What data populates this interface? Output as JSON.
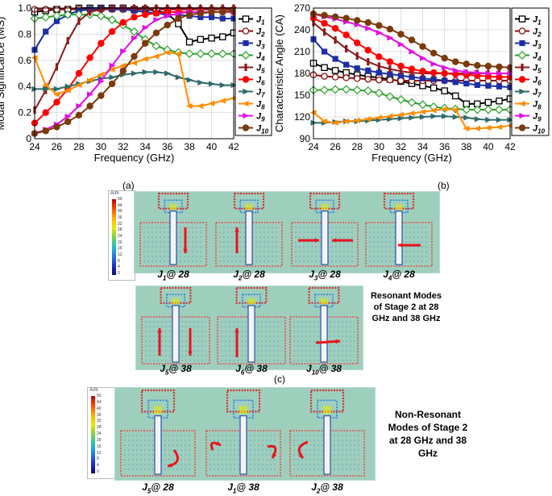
{
  "chart_data": [
    {
      "type": "line",
      "title": "",
      "xlabel": "Frequency (GHz)",
      "ylabel": "Modal Significance (MS)",
      "xlim": [
        24,
        42
      ],
      "ylim": [
        0,
        1
      ],
      "xticks": [
        "24",
        "26",
        "28",
        "30",
        "32",
        "34",
        "36",
        "38",
        "40",
        "42"
      ],
      "yticks": [
        "0",
        "0.2",
        "0.4",
        "0.6",
        "0.8",
        "1.0"
      ],
      "grid": true,
      "legend_position": "right",
      "x": [
        24,
        25,
        26,
        27,
        28,
        29,
        30,
        31,
        32,
        33,
        34,
        35,
        36,
        37,
        38,
        39,
        40,
        41,
        42
      ],
      "series": [
        {
          "name": "J1",
          "label": "J",
          "sub": "1",
          "color": "#000000",
          "marker": "square-open",
          "values": [
            0.97,
            0.98,
            0.99,
            0.99,
            1.0,
            1.0,
            1.0,
            1.0,
            1.0,
            0.99,
            0.99,
            0.98,
            0.96,
            0.88,
            0.74,
            0.76,
            0.77,
            0.78,
            0.81
          ]
        },
        {
          "name": "J2",
          "label": "J",
          "sub": "2",
          "color": "#8b1010",
          "marker": "circle-open",
          "values": [
            0.99,
            0.99,
            0.99,
            0.99,
            0.99,
            0.99,
            0.99,
            0.99,
            0.99,
            0.99,
            0.99,
            0.99,
            0.99,
            0.99,
            0.99,
            0.99,
            0.99,
            0.99,
            0.99
          ]
        },
        {
          "name": "J3",
          "label": "J",
          "sub": "3",
          "color": "#1a2fa6",
          "marker": "square",
          "values": [
            0.68,
            0.82,
            0.9,
            0.95,
            0.98,
            0.99,
            1.0,
            0.99,
            0.99,
            0.98,
            0.97,
            0.96,
            0.95,
            0.95,
            0.94,
            0.93,
            0.93,
            0.92,
            0.92
          ]
        },
        {
          "name": "J4",
          "label": "J",
          "sub": "4",
          "color": "#2aa02a",
          "marker": "diamond-open",
          "values": [
            0.92,
            0.93,
            0.94,
            0.95,
            0.95,
            0.95,
            0.94,
            0.91,
            0.87,
            0.82,
            0.76,
            0.71,
            0.68,
            0.66,
            0.65,
            0.65,
            0.65,
            0.65,
            0.65
          ]
        },
        {
          "name": "J5",
          "label": "J",
          "sub": "5",
          "color": "#8b1a1a",
          "marker": "bar",
          "values": [
            0.22,
            0.37,
            0.55,
            0.75,
            0.9,
            0.97,
            0.99,
            1.0,
            1.0,
            1.0,
            1.0,
            1.0,
            1.0,
            1.0,
            1.0,
            1.0,
            1.0,
            1.0,
            1.0
          ]
        },
        {
          "name": "J6",
          "label": "J",
          "sub": "6",
          "color": "#ff0000",
          "marker": "circle",
          "values": [
            0.12,
            0.2,
            0.28,
            0.38,
            0.5,
            0.62,
            0.73,
            0.82,
            0.89,
            0.93,
            0.95,
            0.96,
            0.97,
            0.97,
            0.97,
            0.97,
            0.97,
            0.97,
            0.97
          ]
        },
        {
          "name": "J7",
          "label": "J",
          "sub": "7",
          "color": "#2e6b6b",
          "marker": "triangle-right",
          "values": [
            0.38,
            0.38,
            0.38,
            0.4,
            0.42,
            0.44,
            0.46,
            0.47,
            0.49,
            0.5,
            0.51,
            0.51,
            0.5,
            0.47,
            0.45,
            0.43,
            0.42,
            0.41,
            0.41
          ]
        },
        {
          "name": "J8",
          "label": "J",
          "sub": "8",
          "color": "#ff8c00",
          "marker": "triangle-left",
          "values": [
            0.62,
            0.41,
            0.34,
            0.37,
            0.41,
            0.45,
            0.49,
            0.53,
            0.56,
            0.58,
            0.61,
            0.63,
            0.66,
            0.65,
            0.25,
            0.25,
            0.27,
            0.29,
            0.31
          ]
        },
        {
          "name": "J9",
          "label": "J",
          "sub": "9",
          "color": "#e010e0",
          "marker": "triangle-right",
          "values": [
            0.04,
            0.07,
            0.11,
            0.17,
            0.25,
            0.34,
            0.44,
            0.56,
            0.67,
            0.77,
            0.85,
            0.91,
            0.94,
            0.96,
            0.97,
            0.97,
            0.97,
            0.97,
            0.97
          ]
        },
        {
          "name": "J10",
          "label": "J",
          "sub": "10",
          "color": "#7a3a0a",
          "marker": "circle",
          "values": [
            0.04,
            0.06,
            0.09,
            0.13,
            0.18,
            0.25,
            0.33,
            0.42,
            0.52,
            0.63,
            0.73,
            0.81,
            0.87,
            0.92,
            0.95,
            0.96,
            0.97,
            0.97,
            0.98
          ]
        }
      ]
    },
    {
      "type": "line",
      "title": "",
      "xlabel": "Frequency (GHz)",
      "ylabel": "Characteristic Angle (CA)",
      "xlim": [
        24,
        42
      ],
      "ylim": [
        90,
        270
      ],
      "xticks": [
        "24",
        "26",
        "28",
        "30",
        "32",
        "34",
        "36",
        "38",
        "40",
        "42"
      ],
      "yticks": [
        "90",
        "120",
        "150",
        "180",
        "210",
        "240",
        "270"
      ],
      "grid": true,
      "legend_position": "right",
      "x": [
        24,
        25,
        26,
        27,
        28,
        29,
        30,
        31,
        32,
        33,
        34,
        35,
        36,
        37,
        38,
        39,
        40,
        41,
        42
      ],
      "series": [
        {
          "name": "J1",
          "label": "J",
          "sub": "1",
          "color": "#000000",
          "marker": "square-open",
          "values": [
            194,
            188,
            184,
            181,
            178,
            176,
            174,
            172,
            169,
            166,
            163,
            160,
            156,
            149,
            138,
            138,
            140,
            142,
            145
          ]
        },
        {
          "name": "J2",
          "label": "J",
          "sub": "2",
          "color": "#8b1010",
          "marker": "circle-open",
          "values": [
            178,
            176,
            175,
            174,
            173,
            172,
            171,
            171,
            170,
            170,
            170,
            170,
            170,
            170,
            170,
            170,
            170,
            170,
            170
          ]
        },
        {
          "name": "J3",
          "label": "J",
          "sub": "3",
          "color": "#1a2fa6",
          "marker": "square",
          "values": [
            227,
            210,
            200,
            192,
            187,
            184,
            181,
            179,
            177,
            175,
            173,
            172,
            170,
            168,
            166,
            164,
            163,
            162,
            161
          ]
        },
        {
          "name": "J4",
          "label": "J",
          "sub": "4",
          "color": "#2aa02a",
          "marker": "diamond-open",
          "values": [
            157,
            157,
            158,
            158,
            157,
            156,
            153,
            148,
            144,
            140,
            137,
            134,
            132,
            131,
            130,
            130,
            130,
            130,
            130
          ]
        },
        {
          "name": "J5",
          "label": "J",
          "sub": "5",
          "color": "#8b1a1a",
          "marker": "bar",
          "values": [
            250,
            237,
            226,
            214,
            204,
            196,
            190,
            186,
            183,
            181,
            180,
            180,
            180,
            180,
            180,
            180,
            180,
            180,
            180
          ]
        },
        {
          "name": "J6",
          "label": "J",
          "sub": "6",
          "color": "#ff0000",
          "marker": "circle",
          "values": [
            256,
            249,
            242,
            233,
            222,
            212,
            203,
            196,
            190,
            186,
            183,
            181,
            180,
            179,
            178,
            177,
            176,
            175,
            175
          ]
        },
        {
          "name": "J7",
          "label": "J",
          "sub": "7",
          "color": "#2e6b6b",
          "marker": "triangle-right",
          "values": [
            112,
            112,
            113,
            114,
            114,
            115,
            116,
            117,
            118,
            119,
            120,
            121,
            121,
            120,
            119,
            117,
            116,
            116,
            116
          ]
        },
        {
          "name": "J8",
          "label": "J",
          "sub": "8",
          "color": "#ff8c00",
          "marker": "triangle-left",
          "values": [
            126,
            114,
            112,
            114,
            115,
            117,
            119,
            121,
            123,
            125,
            127,
            129,
            131,
            130,
            104,
            104,
            105,
            106,
            108
          ]
        },
        {
          "name": "J9",
          "label": "J",
          "sub": "9",
          "color": "#e010e0",
          "marker": "triangle-right",
          "values": [
            262,
            258,
            255,
            251,
            247,
            242,
            236,
            229,
            220,
            210,
            201,
            193,
            188,
            184,
            182,
            181,
            180,
            180,
            180
          ]
        },
        {
          "name": "J10",
          "label": "J",
          "sub": "10",
          "color": "#7a3a0a",
          "marker": "circle",
          "values": [
            262,
            260,
            258,
            256,
            253,
            250,
            246,
            241,
            234,
            226,
            217,
            208,
            201,
            196,
            193,
            191,
            190,
            189,
            188
          ]
        }
      ]
    }
  ],
  "captions": {
    "a": "(a)",
    "b": "(b)",
    "c": "(c)"
  },
  "colorbar": {
    "unit": "A/m",
    "ticks": [
      "50",
      "44",
      "40",
      "36",
      "32",
      "28",
      "24",
      "20",
      "16",
      "12",
      "8",
      "4",
      "0"
    ]
  },
  "stage2_row1_labels": [
    {
      "j": "J",
      "sub": "1",
      "at": "@ 28"
    },
    {
      "j": "J",
      "sub": "2",
      "at": "@ 28"
    },
    {
      "j": "J",
      "sub": "3",
      "at": "@ 28"
    },
    {
      "j": "J",
      "sub": "4",
      "at": "@ 28"
    }
  ],
  "stage2_row2_labels": [
    {
      "j": "J",
      "sub": "5",
      "at": "@ 38"
    },
    {
      "j": "J",
      "sub": "6",
      "at": "@ 38"
    },
    {
      "j": "J",
      "sub": "10",
      "at": "@ 38"
    }
  ],
  "resonant_text": "Resonant Modes of Stage 2 at 28 GHz and 38 GHz",
  "nonres_labels": [
    {
      "j": "J",
      "sub": "5",
      "at": "@ 28"
    },
    {
      "j": "J",
      "sub": "1",
      "at": "@ 38"
    },
    {
      "j": "J",
      "sub": "2",
      "at": "@ 38"
    }
  ],
  "nonres_text": "Non-Resonant Modes of Stage 2 at 28 GHz and 38 GHz",
  "styles": {
    "arrow_color": "#e8141c",
    "panel_bg": "#9ecfbd"
  }
}
